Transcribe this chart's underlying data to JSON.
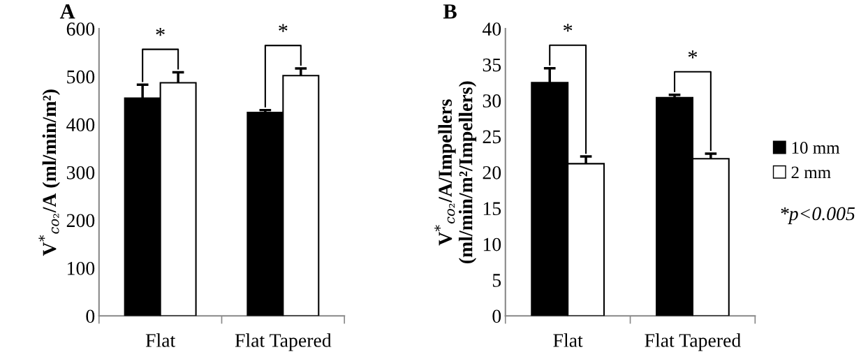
{
  "chart_data": [
    {
      "type": "bar",
      "title": "A",
      "ylabel": "V$^{*}$$_{co₂}$/A (ml/min/m²)",
      "categories": [
        "Flat",
        "Flat Tapered"
      ],
      "series": [
        {
          "color": "#000000",
          "values": [
            455,
            425
          ],
          "errors": [
            28,
            5
          ]
        },
        {
          "color": "#ffffff",
          "values": [
            487,
            502
          ],
          "errors": [
            22,
            15
          ]
        }
      ],
      "ylim": [
        0,
        600
      ],
      "yticks": [
        0,
        100,
        200,
        300,
        400,
        500,
        600
      ],
      "grid": false,
      "legend": false,
      "annotations": [
        "*",
        "*"
      ]
    },
    {
      "type": "bar",
      "title": "B",
      "ylabel": "V$^{*}$$_{co₂}$/A/Impellers\n(ml/min/m²/Impellers)",
      "categories": [
        "Flat",
        "Flat Tapered"
      ],
      "series": [
        {
          "name": "10 mm",
          "color": "#000000",
          "values": [
            32.5,
            30.4
          ],
          "errors": [
            2,
            0.4
          ]
        },
        {
          "name": "2 mm",
          "color": "#ffffff",
          "values": [
            21.2,
            21.9
          ],
          "errors": [
            1,
            0.7
          ]
        }
      ],
      "ylim": [
        0,
        40
      ],
      "yticks": [
        0,
        5,
        10,
        15,
        20,
        25,
        30,
        35,
        40
      ],
      "grid": false,
      "legend": "right",
      "annotations": [
        "*",
        "*",
        "*p<0.005"
      ]
    }
  ]
}
